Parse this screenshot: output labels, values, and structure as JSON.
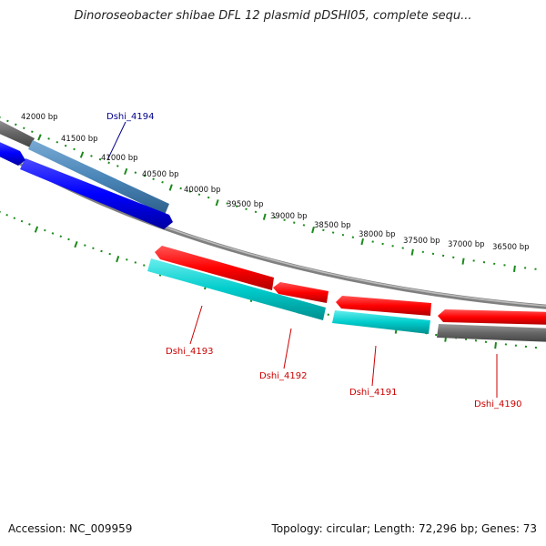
{
  "title": "Dinoroseobacter shibae DFL 12 plasmid pDSHI05, complete sequ...",
  "footer": {
    "accession": "Accession: NC_009959",
    "summary": "Topology: circular; Length: 72,296 bp; Genes: 73"
  },
  "colors": {
    "forward_gene": "#ff0000",
    "reverse_gene": "#0000ff",
    "cds_teal": "#00cccc",
    "steel": "#4a86b8",
    "backbone": "#808080",
    "gray_band": "#666666",
    "ticks": "#1a8a1a",
    "label_blue": "#00008b",
    "label_red": "#cc0000"
  },
  "tick_labels": [
    "42000 bp",
    "41500 bp",
    "41000 bp",
    "40500 bp",
    "40000 bp",
    "39500 bp",
    "39000 bp",
    "38500 bp",
    "38000 bp",
    "37500 bp",
    "37000 bp",
    "36500 bp"
  ],
  "genes": [
    {
      "id": "Dshi_4194",
      "color": "#00008b"
    },
    {
      "id": "Dshi_4193",
      "color": "#cc0000"
    },
    {
      "id": "Dshi_4192",
      "color": "#cc0000"
    },
    {
      "id": "Dshi_4191",
      "color": "#cc0000"
    },
    {
      "id": "Dshi_4190",
      "color": "#cc0000"
    }
  ]
}
